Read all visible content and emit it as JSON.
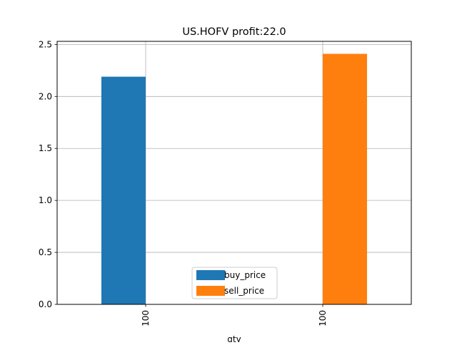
{
  "chart_data": {
    "type": "bar",
    "title": "US.HOFV  profit:22.0",
    "xlabel": "qty",
    "ylabel": "",
    "categories": [
      "100",
      "100"
    ],
    "series": [
      {
        "name": "buy_price",
        "values": [
          2.19,
          null
        ],
        "color": "#1f77b4"
      },
      {
        "name": "sell_price",
        "values": [
          null,
          2.41
        ],
        "color": "#ff7f0e"
      }
    ],
    "ylim": [
      0,
      2.53
    ],
    "yticks": [
      0.0,
      0.5,
      1.0,
      1.5,
      2.0,
      2.5
    ],
    "ytick_labels": [
      "0.0",
      "0.5",
      "1.0",
      "1.5",
      "2.0",
      "2.5"
    ],
    "grid": true,
    "legend_position": "bottom-center"
  }
}
